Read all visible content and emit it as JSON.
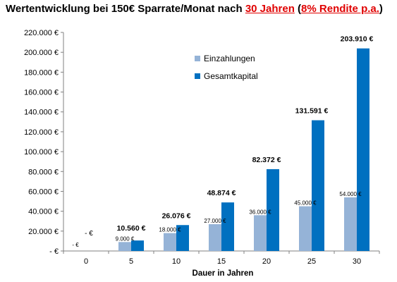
{
  "title_parts": {
    "part1": "Wertentwicklung bei 150€ Sparrate/Monat nach ",
    "part2": "30 Jahren",
    "part3": " (",
    "part4": "8% Rendite p.a.",
    "part5": ")"
  },
  "colors": {
    "einzahlungen": "#95B3D7",
    "gesamtkapital": "#0070C0",
    "title_highlight": "#E00000",
    "axis": "#808080"
  },
  "chart_data": {
    "type": "bar",
    "title": "Wertentwicklung bei 150€ Sparrate/Monat nach 30 Jahren (8% Rendite p.a.)",
    "xlabel": "Dauer in Jahren",
    "ylabel": "",
    "categories": [
      "0",
      "5",
      "10",
      "15",
      "20",
      "25",
      "30"
    ],
    "ylim": [
      0,
      220000
    ],
    "y_ticks": [
      {
        "value": 0,
        "label": "-   €"
      },
      {
        "value": 20000,
        "label": "20.000 €"
      },
      {
        "value": 40000,
        "label": "40.000 €"
      },
      {
        "value": 60000,
        "label": "60.000 €"
      },
      {
        "value": 80000,
        "label": "80.000 €"
      },
      {
        "value": 100000,
        "label": "100.000 €"
      },
      {
        "value": 120000,
        "label": "120.000 €"
      },
      {
        "value": 140000,
        "label": "140.000 €"
      },
      {
        "value": 160000,
        "label": "160.000 €"
      },
      {
        "value": 180000,
        "label": "180.000 €"
      },
      {
        "value": 200000,
        "label": "200.000 €"
      },
      {
        "value": 220000,
        "label": "220.000 €"
      }
    ],
    "legend_position": "top-left-inside",
    "grid": false,
    "series": [
      {
        "name": "Einzahlungen",
        "values": [
          0,
          9000,
          18000,
          27000,
          36000,
          45000,
          54000
        ],
        "labels": [
          "-   €",
          "9.000 €",
          "18.000 €",
          "27.000 €",
          "36.000 €",
          "45.000 €",
          "54.000 €"
        ]
      },
      {
        "name": "Gesamtkapital",
        "values": [
          0,
          10560,
          26076,
          48874,
          82372,
          131591,
          203910
        ],
        "labels": [
          "-   €",
          "10.560 €",
          "26.076 €",
          "48.874 €",
          "82.372 €",
          "131.591 €",
          "203.910 €"
        ]
      }
    ]
  }
}
